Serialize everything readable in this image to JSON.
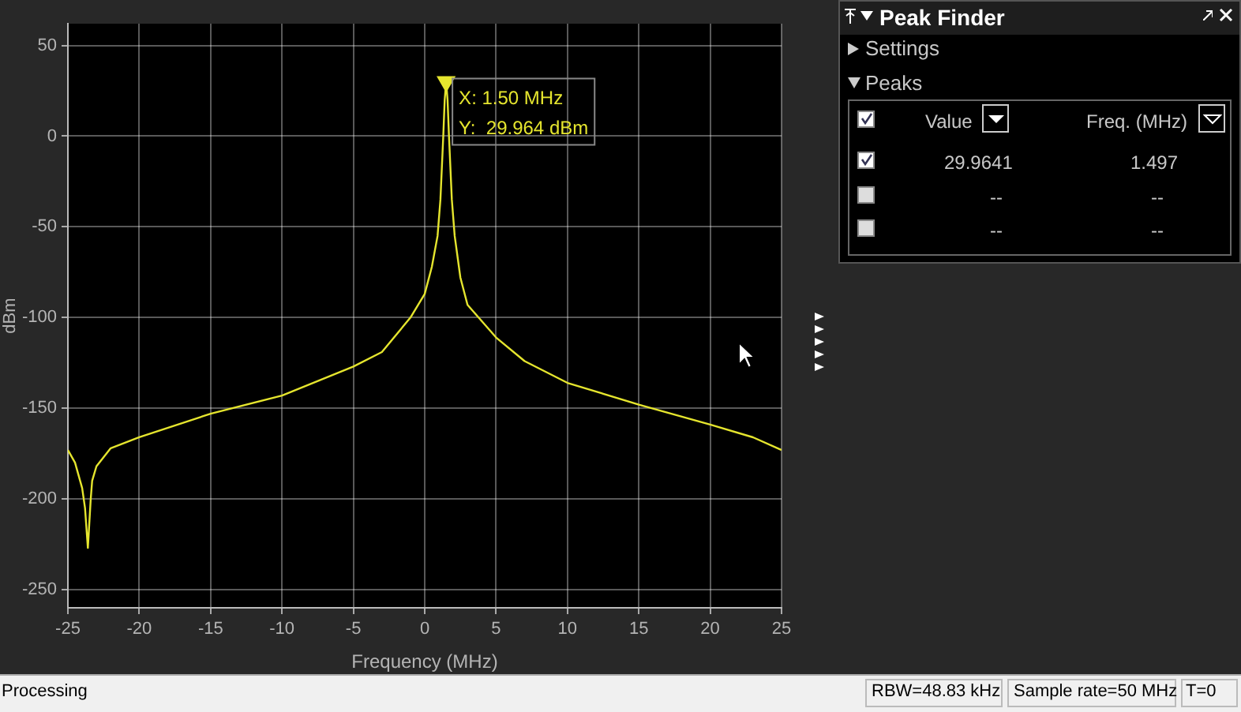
{
  "chart_data": {
    "type": "line",
    "xlabel": "Frequency (MHz)",
    "ylabel": "dBm",
    "xlim": [
      -25,
      25
    ],
    "xticks": [
      -25,
      -20,
      -15,
      -10,
      -5,
      0,
      5,
      10,
      15,
      20,
      25
    ],
    "ylim": [
      -260,
      62
    ],
    "yticks": [
      -250,
      -200,
      -150,
      -100,
      -50,
      0,
      50
    ],
    "grid": true,
    "legend": false,
    "series": [
      {
        "type": "line",
        "color": "#e5e52e",
        "marker": "none",
        "x": [
          -25,
          -24.5,
          -24,
          -23.8,
          -23.6,
          -23.4,
          -23.3,
          -23,
          -22,
          -20,
          -15,
          -10,
          -5,
          -3,
          -1,
          0,
          0.5,
          0.9,
          1.1,
          1.3,
          1.4,
          1.5,
          1.6,
          1.7,
          1.9,
          2.1,
          2.5,
          3,
          5,
          7,
          10,
          15,
          20,
          23,
          25
        ],
        "values": [
          -173,
          -180,
          -194,
          -205,
          -227,
          -200,
          -190,
          -182,
          -172,
          -166,
          -153,
          -143,
          -127,
          -119,
          -100,
          -87,
          -72,
          -55,
          -35,
          0,
          20,
          29.964,
          20,
          0,
          -35,
          -55,
          -78,
          -93,
          -111,
          -124,
          -136,
          -148,
          -159,
          -166,
          -173
        ]
      },
      {
        "type": "scatter",
        "color": "#e5e52e",
        "marker": "triangle",
        "x": [
          1.5
        ],
        "values": [
          29.964
        ]
      }
    ],
    "annotations": [
      {
        "text": "X: 1.50 MHz\nY:  29.964 dBm",
        "x": 1.5,
        "y": 29.964
      },
      "Peak Finder",
      "Settings",
      "Peaks",
      "Value",
      "Freq. (MHz)",
      "29.9641",
      "1.497",
      "--",
      "--",
      "--",
      "--",
      "Processing",
      "RBW=48.83 kHz",
      "Sample rate=50 MHz",
      "T=0"
    ]
  }
}
